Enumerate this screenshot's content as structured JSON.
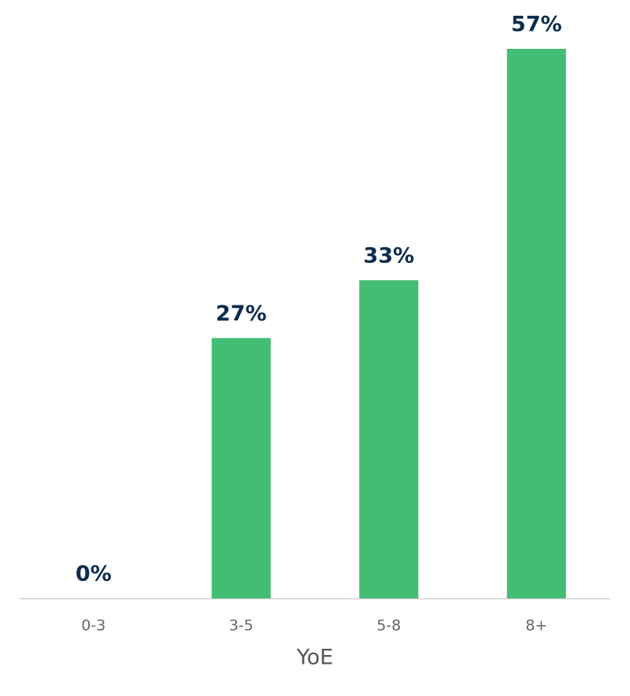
{
  "chart_data": {
    "type": "bar",
    "x_label": "YoE",
    "categories": [
      "0-3",
      "3-5",
      "5-8",
      "8+"
    ],
    "values": [
      0,
      27,
      33,
      57
    ],
    "value_labels": [
      "0%",
      "27%",
      "33%",
      "57%"
    ],
    "color": "#44bd74"
  }
}
